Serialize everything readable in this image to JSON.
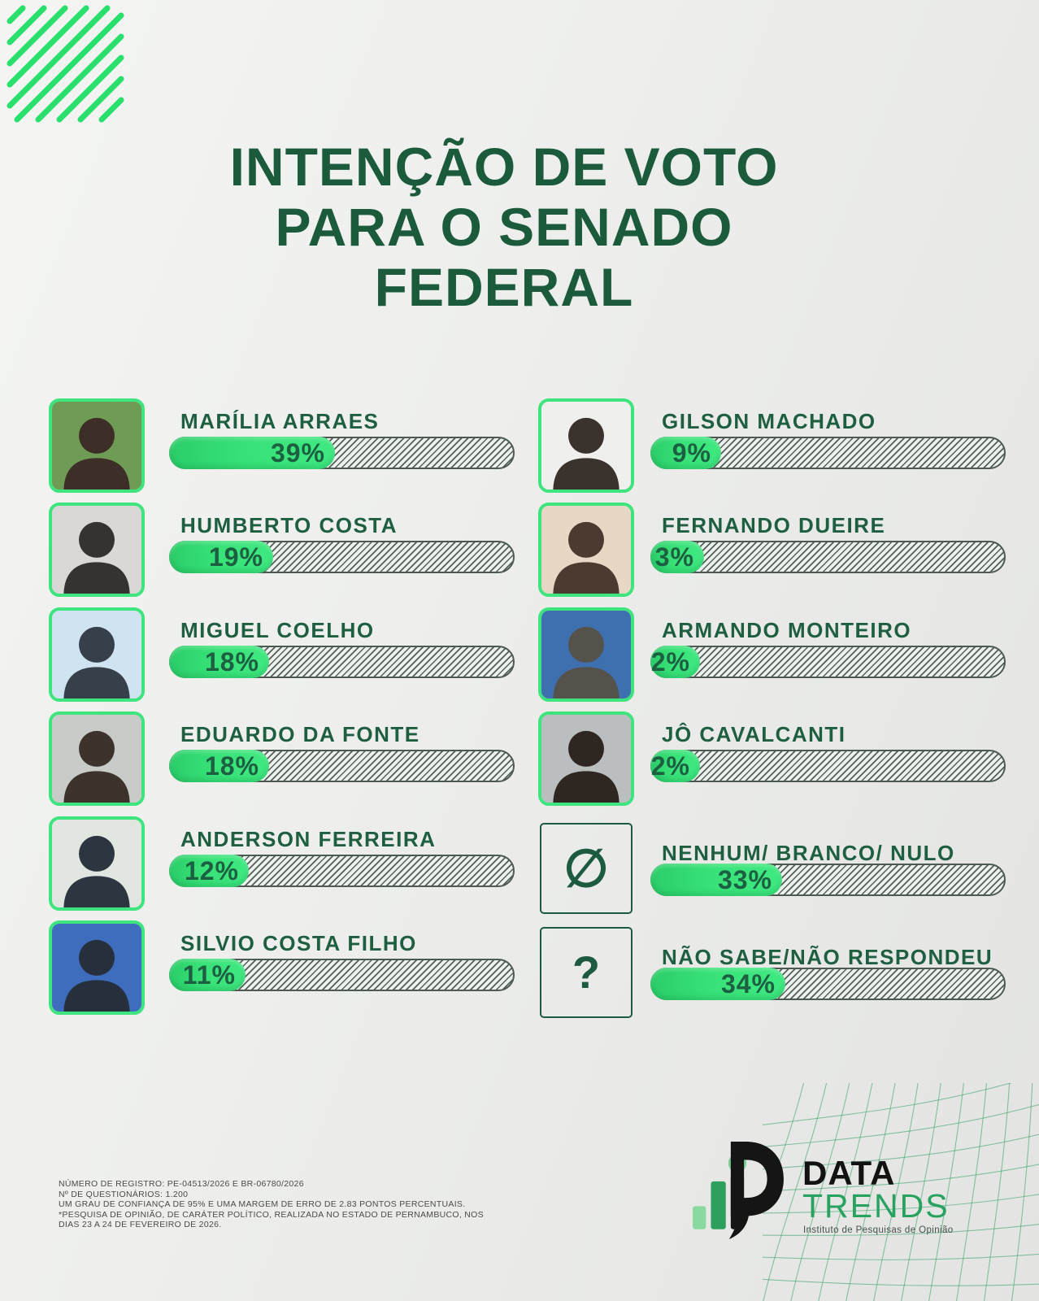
{
  "title": {
    "full": "INTENÇÃO DE VOTO PARA O SENADO FEDERAL",
    "lines": [
      "INTENÇÃO DE VOTO",
      "PARA O SENADO",
      "FEDERAL"
    ]
  },
  "chart_data": {
    "type": "bar",
    "orientation": "horizontal",
    "unit": "%",
    "title": "INTENÇÃO DE VOTO PARA O SENADO FEDERAL",
    "legend": "none",
    "columns": 2,
    "categories": [
      "MARÍLIA ARRAES",
      "HUMBERTO COSTA",
      "MIGUEL COELHO",
      "EDUARDO DA FONTE",
      "ANDERSON FERREIRA",
      "SILVIO COSTA FILHO",
      "GILSON MACHADO",
      "FERNANDO DUEIRE",
      "ARMANDO MONTEIRO",
      "JÔ CAVALCANTI",
      "NENHUM/ BRANCO/ NULO",
      "NÃO SABE/NÃO RESPONDEU"
    ],
    "values": [
      39,
      19,
      18,
      18,
      12,
      11,
      9,
      3,
      2,
      2,
      33,
      34
    ],
    "labels": [
      "39%",
      "19%",
      "18%",
      "18%",
      "12%",
      "11%",
      "9%",
      "3%",
      "2%",
      "2%",
      "33%",
      "34%"
    ],
    "items": [
      {
        "name": "MARÍLIA ARRAES",
        "value": 39,
        "label": "39%",
        "column": "left",
        "row": 0,
        "kind": "photo",
        "icon": null,
        "fill_pct": 48,
        "photo": {
          "bg": "#6f9c55",
          "fg": "#3d2f27"
        }
      },
      {
        "name": "HUMBERTO COSTA",
        "value": 19,
        "label": "19%",
        "column": "left",
        "row": 1,
        "kind": "photo",
        "icon": null,
        "fill_pct": 30,
        "photo": {
          "bg": "#d9d8d6",
          "fg": "#35322f"
        }
      },
      {
        "name": "MIGUEL COELHO",
        "value": 18,
        "label": "18%",
        "column": "left",
        "row": 2,
        "kind": "photo",
        "icon": null,
        "fill_pct": 29,
        "photo": {
          "bg": "#cfe3f0",
          "fg": "#35404b"
        }
      },
      {
        "name": "EDUARDO DA FONTE",
        "value": 18,
        "label": "18%",
        "column": "left",
        "row": 3,
        "kind": "photo",
        "icon": null,
        "fill_pct": 29,
        "photo": {
          "bg": "#c9cbc8",
          "fg": "#3b332c"
        }
      },
      {
        "name": "ANDERSON FERREIRA",
        "value": 12,
        "label": "12%",
        "column": "left",
        "row": 4,
        "kind": "photo",
        "icon": null,
        "fill_pct": 23,
        "photo": {
          "bg": "#e2e6e1",
          "fg": "#2d3640"
        }
      },
      {
        "name": "SILVIO COSTA FILHO",
        "value": 11,
        "label": "11%",
        "column": "left",
        "row": 5,
        "kind": "photo",
        "icon": null,
        "fill_pct": 22,
        "photo": {
          "bg": "#3e6dbd",
          "fg": "#26303c"
        }
      },
      {
        "name": "GILSON MACHADO",
        "value": 9,
        "label": "9%",
        "column": "right",
        "row": 0,
        "kind": "photo",
        "icon": null,
        "fill_pct": 20,
        "photo": {
          "bg": "#efefed",
          "fg": "#3a322d"
        }
      },
      {
        "name": "FERNANDO DUEIRE",
        "value": 3,
        "label": "3%",
        "column": "right",
        "row": 1,
        "kind": "photo",
        "icon": null,
        "fill_pct": 15,
        "photo": {
          "bg": "#e7d8c6",
          "fg": "#4a3a30"
        }
      },
      {
        "name": "ARMANDO MONTEIRO",
        "value": 2,
        "label": "2%",
        "column": "right",
        "row": 2,
        "kind": "photo",
        "icon": null,
        "fill_pct": 14,
        "photo": {
          "bg": "#3e6fae",
          "fg": "#55514b"
        }
      },
      {
        "name": "JÔ CAVALCANTI",
        "value": 2,
        "label": "2%",
        "column": "right",
        "row": 3,
        "kind": "photo",
        "icon": null,
        "fill_pct": 14,
        "photo": {
          "bg": "#babebe",
          "fg": "#2e2620"
        }
      },
      {
        "name": "NENHUM/ BRANCO/ NULO",
        "value": 33,
        "label": "33%",
        "column": "right",
        "row": 4,
        "kind": "icon",
        "icon": "∅",
        "fill_pct": 37,
        "photo": null
      },
      {
        "name": "NÃO SABE/NÃO RESPONDEU",
        "value": 34,
        "label": "34%",
        "column": "right",
        "row": 5,
        "kind": "icon",
        "icon": "?",
        "fill_pct": 38,
        "photo": null
      }
    ]
  },
  "footer": {
    "lines": [
      "NÚMERO DE REGISTRO: PE-04513/2026 E BR-06780/2026",
      "Nº DE QUESTIONÁRIOS: 1.200",
      "UM GRAU DE CONFIANÇA DE 95% E UMA MARGEM DE ERRO DE 2.83 PONTOS PERCENTUAIS.",
      "*PESQUISA DE OPINIÃO, DE CARÁTER POLÍTICO, REALIZADA NO ESTADO DE PERNAMBUCO, NOS",
      "DIAS 23 A 24 DE FEVEREIRO DE 2026."
    ]
  },
  "logo": {
    "name_top": "DATA",
    "name_bottom": "TRENDS",
    "subtitle": "Instituto de Pesquisas de Opinião"
  },
  "colors": {
    "accent_green": "#3ee47d",
    "dark_green": "#1e5e41",
    "title_green": "#1b5b3c",
    "hatch_line": "#38443d",
    "track_bg": "#edf1ed",
    "background": "#edeeec",
    "logo_black": "#121212",
    "logo_green": "#27a25f",
    "stripe_green": "#2ae06c",
    "mesh_green": "#2f9e63"
  }
}
